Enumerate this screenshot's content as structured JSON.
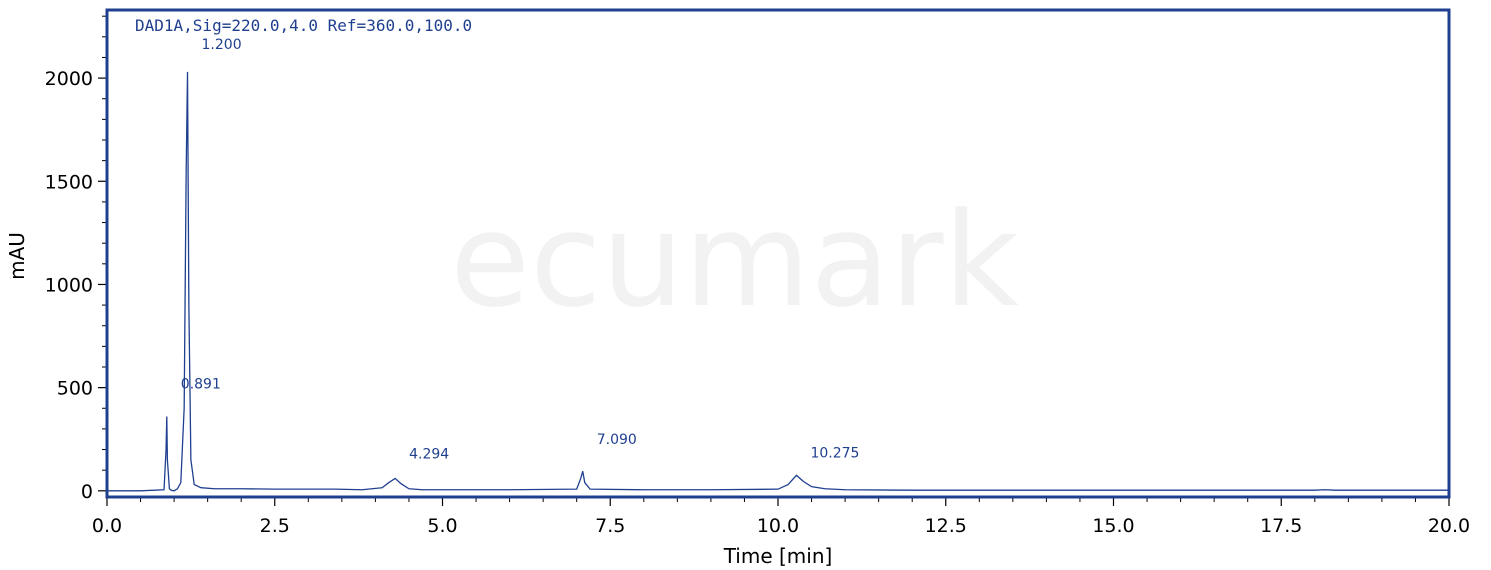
{
  "chart_data": {
    "type": "line",
    "title": "DAD1A,Sig=220.0,4.0 Ref=360.0,100.0",
    "xlabel": "Time [min]",
    "ylabel": "mAU",
    "xlim": [
      0,
      20
    ],
    "ylim": [
      -30,
      2330
    ],
    "xticks": [
      0.0,
      2.5,
      5.0,
      7.5,
      10.0,
      12.5,
      15.0,
      17.5,
      20.0
    ],
    "xtick_labels": [
      "0.0",
      "2.5",
      "5.0",
      "7.5",
      "10.0",
      "12.5",
      "15.0",
      "17.5",
      "20.0"
    ],
    "yticks": [
      0,
      500,
      1000,
      1500,
      2000
    ],
    "ytick_labels": [
      "0",
      "500",
      "1000",
      "1500",
      "2000"
    ],
    "grid": false,
    "watermark": "ecumark",
    "peaks": [
      {
        "rt": 0.891,
        "label": "0.891",
        "height": 360
      },
      {
        "rt": 1.2,
        "label": "1.200",
        "height": 2030
      },
      {
        "rt": 4.294,
        "label": "4.294",
        "height": 60
      },
      {
        "rt": 7.09,
        "label": "7.090",
        "height": 95
      },
      {
        "rt": 10.275,
        "label": "10.275",
        "height": 75
      }
    ],
    "series": [
      {
        "color": "#1f3f8f",
        "x": [
          0.0,
          0.5,
          0.85,
          0.88,
          0.891,
          0.9,
          0.93,
          0.96,
          1.0,
          1.05,
          1.1,
          1.15,
          1.18,
          1.2,
          1.22,
          1.25,
          1.3,
          1.4,
          1.6,
          2.0,
          2.5,
          3.0,
          3.4,
          3.8,
          4.1,
          4.2,
          4.294,
          4.38,
          4.5,
          4.7,
          5.0,
          6.0,
          7.0,
          7.06,
          7.09,
          7.12,
          7.2,
          8.0,
          9.0,
          10.0,
          10.15,
          10.275,
          10.38,
          10.5,
          10.7,
          11.0,
          12.0,
          13.0,
          14.0,
          15.0,
          16.0,
          17.0,
          18.0,
          18.15,
          18.3,
          19.0,
          20.0
        ],
        "y": [
          0,
          0,
          5,
          200,
          360,
          150,
          10,
          2,
          0,
          10,
          40,
          400,
          1550,
          2030,
          900,
          150,
          30,
          15,
          10,
          10,
          8,
          8,
          8,
          5,
          15,
          40,
          60,
          35,
          10,
          5,
          5,
          5,
          8,
          60,
          95,
          40,
          8,
          5,
          5,
          8,
          30,
          75,
          45,
          20,
          10,
          5,
          3,
          3,
          3,
          3,
          3,
          3,
          3,
          5,
          3,
          3,
          3
        ]
      }
    ]
  }
}
